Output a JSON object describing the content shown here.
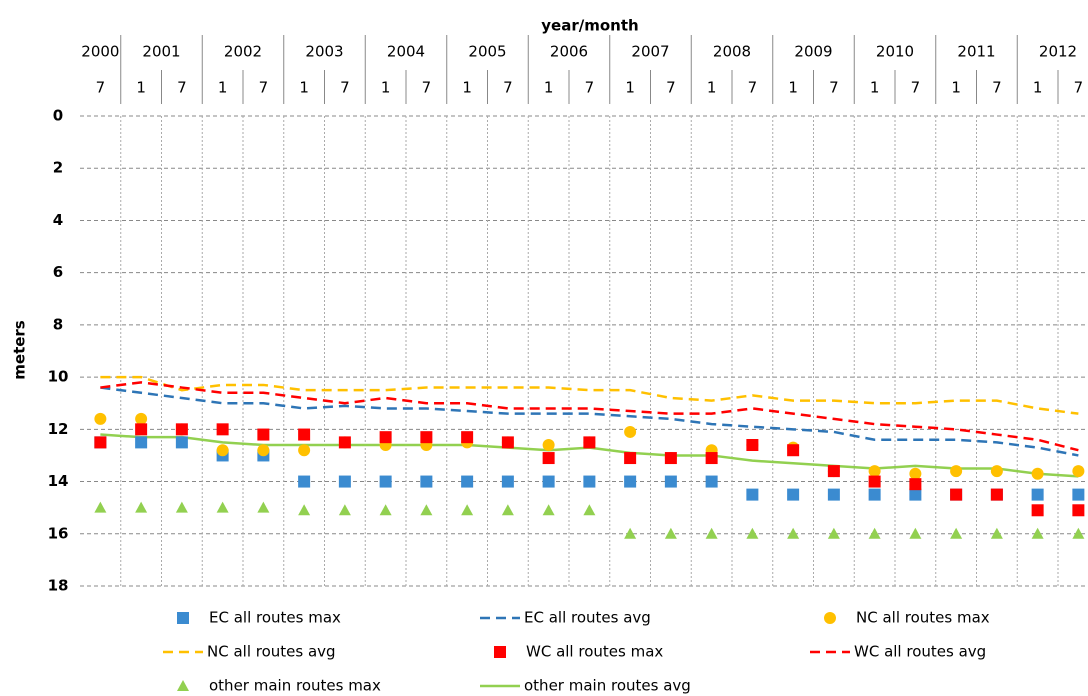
{
  "chart_data": {
    "type": "line",
    "x_axis_title": "year/month",
    "y_axis_title": "meters",
    "year_labels": [
      "2000",
      "2001",
      "2002",
      "2003",
      "2004",
      "2005",
      "2006",
      "2007",
      "2008",
      "2009",
      "2010",
      "2011",
      "2012"
    ],
    "categories": [
      "7",
      "1",
      "7",
      "1",
      "7",
      "1",
      "7",
      "1",
      "7",
      "1",
      "7",
      "1",
      "7",
      "1",
      "7",
      "1",
      "7",
      "1",
      "7",
      "1",
      "7",
      "1",
      "7",
      "1",
      "7"
    ],
    "ylim": [
      0,
      18
    ],
    "yticks": [
      0,
      2,
      4,
      6,
      8,
      10,
      12,
      14,
      16,
      18
    ],
    "invert_y": true,
    "grid": true,
    "series": [
      {
        "name": "EC all routes max",
        "color": "#3b8bd0",
        "marker": "square",
        "values": [
          12.5,
          12.5,
          12.5,
          13.0,
          13.0,
          14.0,
          14.0,
          14.0,
          14.0,
          14.0,
          14.0,
          14.0,
          14.0,
          14.0,
          14.0,
          14.0,
          14.5,
          14.5,
          14.5,
          14.5,
          14.5,
          14.5,
          14.5,
          14.5,
          14.5
        ]
      },
      {
        "name": "EC all routes avg",
        "color": "#2e75b6",
        "marker": "dash",
        "values": [
          10.4,
          10.6,
          10.8,
          11.0,
          11.0,
          11.2,
          11.1,
          11.2,
          11.2,
          11.3,
          11.4,
          11.4,
          11.4,
          11.5,
          11.6,
          11.8,
          11.9,
          12.0,
          12.1,
          12.4,
          12.4,
          12.4,
          12.5,
          12.7,
          13.0
        ]
      },
      {
        "name": "NC all routes max",
        "color": "#ffc000",
        "marker": "circle",
        "values": [
          11.6,
          11.6,
          12.0,
          12.8,
          12.8,
          12.8,
          12.5,
          12.6,
          12.6,
          12.5,
          12.5,
          12.6,
          12.5,
          12.1,
          13.1,
          12.8,
          12.6,
          12.7,
          13.6,
          13.6,
          13.7,
          13.6,
          13.6,
          13.7,
          13.6
        ]
      },
      {
        "name": "NC all routes avg",
        "color": "#ffc000",
        "marker": "dash",
        "values": [
          10.0,
          10.0,
          10.5,
          10.3,
          10.3,
          10.5,
          10.5,
          10.5,
          10.4,
          10.4,
          10.4,
          10.4,
          10.5,
          10.5,
          10.8,
          10.9,
          10.7,
          10.9,
          10.9,
          11.0,
          11.0,
          10.9,
          10.9,
          11.2,
          11.4
        ]
      },
      {
        "name": "WC all routes max",
        "color": "#ff0000",
        "marker": "square",
        "values": [
          12.5,
          12.0,
          12.0,
          12.0,
          12.2,
          12.2,
          12.5,
          12.3,
          12.3,
          12.3,
          12.5,
          13.1,
          12.5,
          13.1,
          13.1,
          13.1,
          12.6,
          12.8,
          13.6,
          14.0,
          14.1,
          14.5,
          14.5,
          15.1,
          15.1
        ]
      },
      {
        "name": "WC all routes avg",
        "color": "#ff0000",
        "marker": "dash",
        "values": [
          10.4,
          10.2,
          10.4,
          10.6,
          10.6,
          10.8,
          11.0,
          10.8,
          11.0,
          11.0,
          11.2,
          11.2,
          11.2,
          11.3,
          11.4,
          11.4,
          11.2,
          11.4,
          11.6,
          11.8,
          11.9,
          12.0,
          12.2,
          12.4,
          12.8
        ]
      },
      {
        "name": "other main routes max",
        "color": "#92d050",
        "marker": "triangle",
        "values": [
          15.0,
          15.0,
          15.0,
          15.0,
          15.0,
          15.1,
          15.1,
          15.1,
          15.1,
          15.1,
          15.1,
          15.1,
          15.1,
          16.0,
          16.0,
          16.0,
          16.0,
          16.0,
          16.0,
          16.0,
          16.0,
          16.0,
          16.0,
          16.0,
          16.0
        ]
      },
      {
        "name": "other main routes avg",
        "color": "#92d050",
        "marker": "line",
        "values": [
          12.2,
          12.3,
          12.3,
          12.5,
          12.6,
          12.6,
          12.6,
          12.6,
          12.6,
          12.6,
          12.7,
          12.8,
          12.7,
          12.9,
          13.0,
          13.0,
          13.2,
          13.3,
          13.4,
          13.5,
          13.4,
          13.5,
          13.5,
          13.7,
          13.8
        ]
      }
    ]
  }
}
